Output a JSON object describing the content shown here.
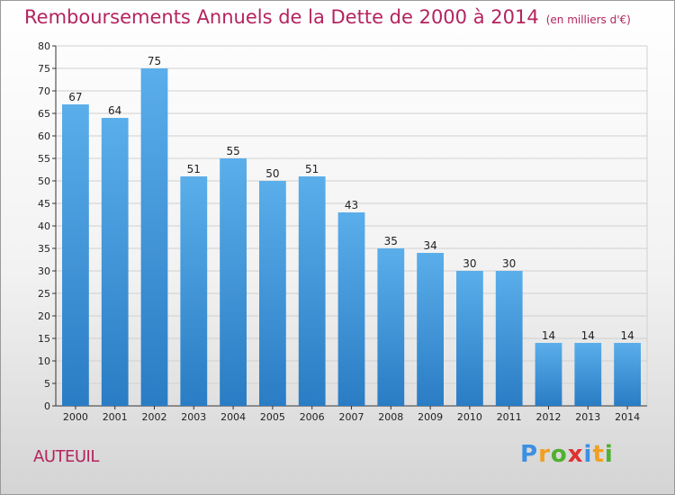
{
  "title": "Remboursements Annuels de la Dette de 2000 à 2014",
  "unit": "(en milliers d'€)",
  "city": "AUTEUIL",
  "logo": {
    "letters": [
      "P",
      "r",
      "o",
      "x",
      "i",
      "t",
      "i"
    ],
    "colors": [
      "#3d8fe0",
      "#f0a020",
      "#50b030",
      "#e03030",
      "#3d8fe0",
      "#f0a020",
      "#50b030"
    ]
  },
  "chart_data": {
    "type": "bar",
    "categories": [
      "2000",
      "2001",
      "2002",
      "2003",
      "2004",
      "2005",
      "2006",
      "2007",
      "2008",
      "2009",
      "2010",
      "2011",
      "2012",
      "2013",
      "2014"
    ],
    "values": [
      67,
      64,
      75,
      51,
      55,
      50,
      51,
      43,
      35,
      34,
      30,
      30,
      14,
      14,
      14
    ],
    "ylim": [
      0,
      80
    ],
    "yticks": [
      0,
      5,
      10,
      15,
      20,
      25,
      30,
      35,
      40,
      45,
      50,
      55,
      60,
      65,
      70,
      75,
      80
    ],
    "grid": true,
    "bar_color_top": "#5aaeea",
    "bar_color_bottom": "#2a7cc4",
    "grid_color": "#d0d0d0"
  }
}
